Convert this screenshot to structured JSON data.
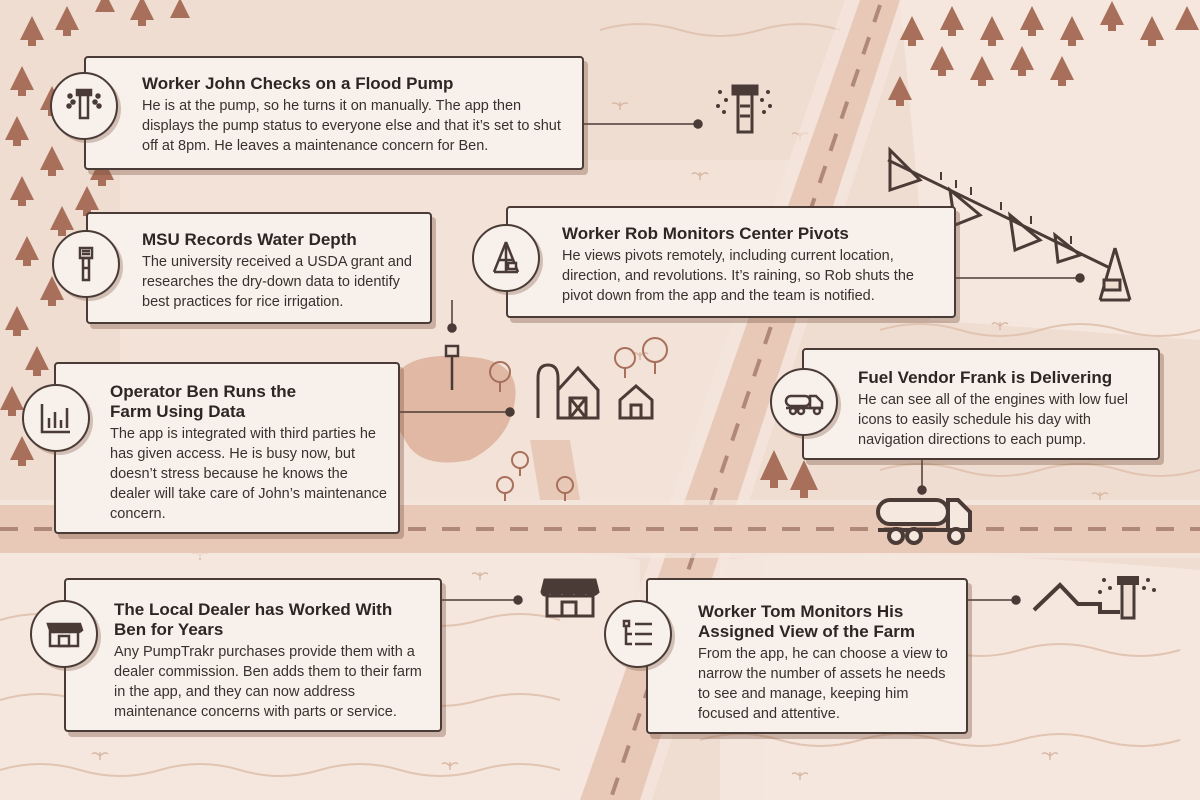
{
  "cards": [
    {
      "title": "Worker John Checks on a Flood Pump",
      "body": "He is at the pump, so he turns it on manually. The app then displays the pump status to everyone else and that it’s set to shut off at 8pm. He leaves a maintenance concern for Ben.",
      "icon": "flood-pump-icon"
    },
    {
      "title": "MSU Records Water Depth",
      "body": "The university received a USDA grant and researches the dry-down data to identify best practices for rice irrigation.",
      "icon": "water-depth-sensor-icon"
    },
    {
      "title": "Worker Rob Monitors Center Pivots",
      "body": "He views pivots remotely, including current location, direction, and revolutions. It’s raining, so Rob shuts the pivot down from the app and the team is notified.",
      "icon": "center-pivot-icon"
    },
    {
      "title": "Operator Ben Runs the Farm Using Data",
      "body": "The app is integrated with third parties he has given access. He is busy now, but doesn’t stress because he knows the dealer will take care of John’s maintenance concern.",
      "icon": "bar-chart-icon"
    },
    {
      "title": "Fuel Vendor Frank is Delivering",
      "body": "He can see all of the engines with low fuel icons to easily schedule his day with navigation directions to each pump.",
      "icon": "fuel-truck-icon"
    },
    {
      "title": "The Local Dealer has Worked With Ben for Years",
      "body": "Any PumpTrakr purchases provide them with a dealer commission. Ben adds them to their farm in the app, and they can now address maintenance concerns with parts or service.",
      "icon": "storefront-icon"
    },
    {
      "title": "Worker Tom Monitors His Assigned View of the Farm",
      "body": "From the app, he can choose a view to narrow the number of assets he needs to see and manage, keeping him focused and attentive.",
      "icon": "list-view-icon"
    }
  ],
  "colors": {
    "background": "#f0ddd2",
    "road": "#e8c9b8",
    "ink": "#4a3b36",
    "tree": "#a8705a",
    "card": "#f8f0ea"
  }
}
